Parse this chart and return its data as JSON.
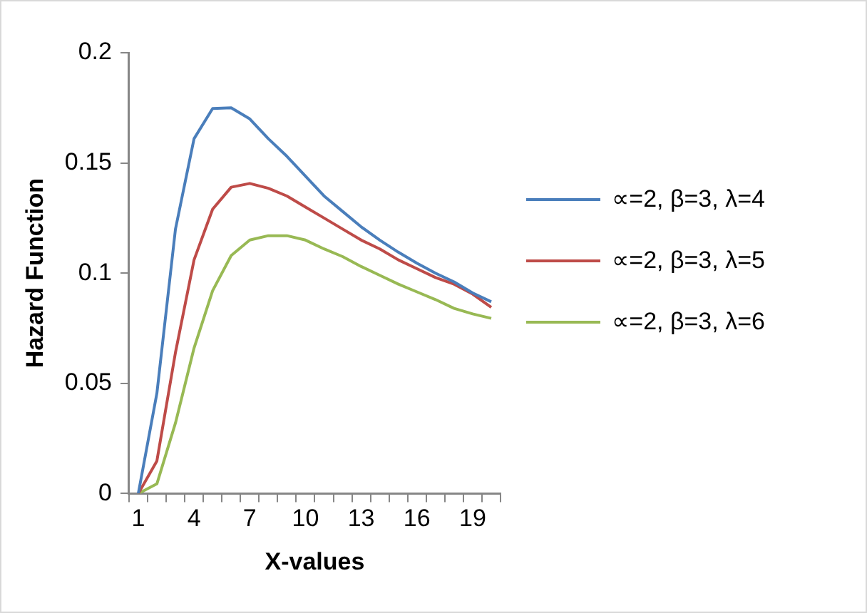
{
  "chart_data": {
    "type": "line",
    "xlabel": "X-values",
    "ylabel": "Hazard Function",
    "categories": [
      "1",
      null,
      null,
      "4",
      null,
      null,
      "7",
      null,
      null,
      "10",
      null,
      null,
      "13",
      null,
      null,
      "16",
      null,
      null,
      "19",
      null
    ],
    "series": [
      {
        "name": "∝=2, β=3, λ=4",
        "color": "#4a7ebb",
        "values": [
          0,
          0.0455,
          0.12,
          0.161,
          0.1747,
          0.175,
          0.17,
          0.161,
          0.153,
          0.144,
          0.135,
          0.128,
          0.121,
          0.115,
          0.1095,
          0.1045,
          0.1,
          0.096,
          0.091,
          0.087
        ]
      },
      {
        "name": "∝=2, β=3, λ=5",
        "color": "#be4b48",
        "values": [
          0,
          0.0148,
          0.064,
          0.106,
          0.129,
          0.139,
          0.1407,
          0.1385,
          0.135,
          0.13,
          0.125,
          0.12,
          0.115,
          0.111,
          0.106,
          0.102,
          0.098,
          0.095,
          0.0905,
          0.0845
        ]
      },
      {
        "name": "∝=2, β=3, λ=6",
        "color": "#98b954",
        "values": [
          0,
          0.0044,
          0.032,
          0.066,
          0.092,
          0.108,
          0.115,
          0.117,
          0.117,
          0.115,
          0.111,
          0.1075,
          0.103,
          0.099,
          0.095,
          0.0915,
          0.088,
          0.084,
          0.0815,
          0.0795
        ]
      }
    ],
    "ylim": [
      0,
      0.2
    ],
    "yticks": [
      0,
      0.05,
      0.1,
      0.15,
      0.2
    ],
    "grid": false,
    "legend": "right",
    "marker": "none",
    "line_style": "solid"
  }
}
